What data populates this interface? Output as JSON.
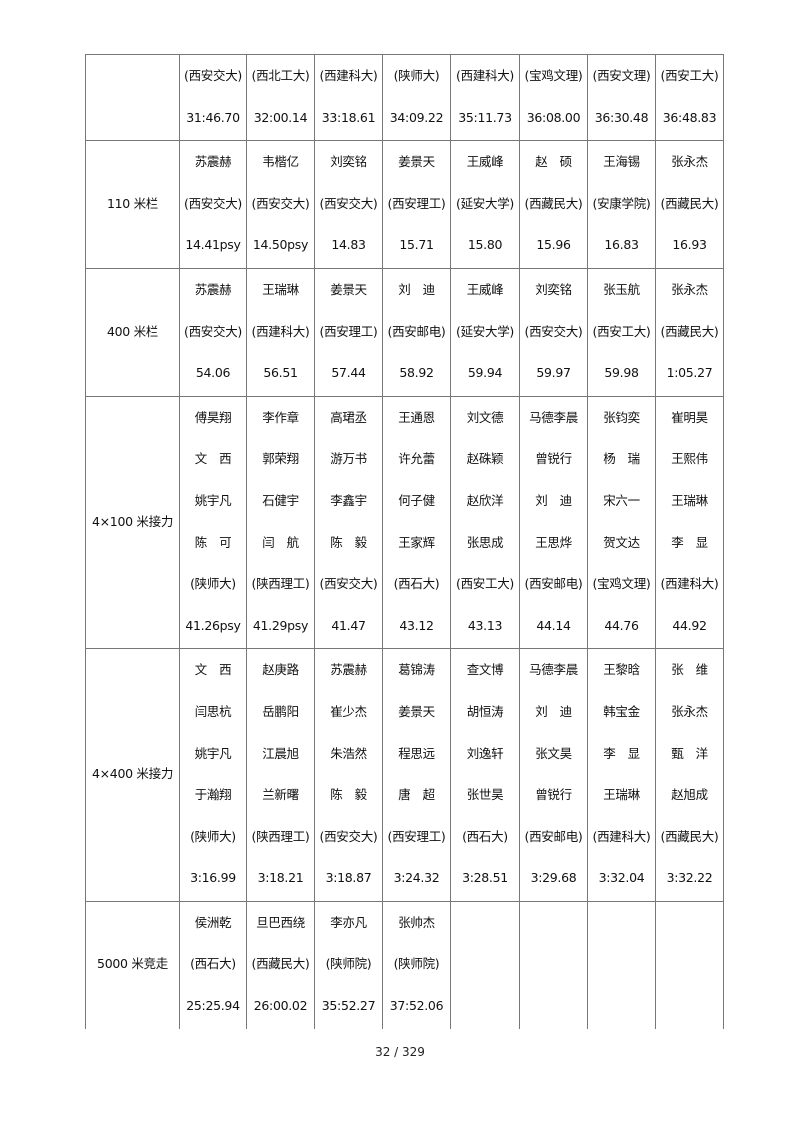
{
  "table": {
    "rows": [
      {
        "event": "",
        "cells": [
          [
            "(西安交大)",
            "31:46.70"
          ],
          [
            "(西北工大)",
            "32:00.14"
          ],
          [
            "(西建科大)",
            "33:18.61"
          ],
          [
            "(陕师大)",
            "34:09.22"
          ],
          [
            "(西建科大)",
            "35:11.73"
          ],
          [
            "(宝鸡文理)",
            "36:08.00"
          ],
          [
            "(西安文理)",
            "36:30.48"
          ],
          [
            "(西安工大)",
            "36:48.83"
          ]
        ]
      },
      {
        "event": "110 米栏",
        "cells": [
          [
            "苏震赫",
            "(西安交大)",
            "14.41psy"
          ],
          [
            "韦楷亿",
            "(西安交大)",
            "14.50psy"
          ],
          [
            "刘奕铭",
            "(西安交大)",
            "14.83"
          ],
          [
            "姜景天",
            "(西安理工)",
            "15.71"
          ],
          [
            "王威峰",
            "(延安大学)",
            "15.80"
          ],
          [
            "赵　硕",
            "(西藏民大)",
            "15.96"
          ],
          [
            "王海锡",
            "(安康学院)",
            "16.83"
          ],
          [
            "张永杰",
            "(西藏民大)",
            "16.93"
          ]
        ]
      },
      {
        "event": "400 米栏",
        "cells": [
          [
            "苏震赫",
            "(西安交大)",
            "54.06"
          ],
          [
            "王瑞琳",
            "(西建科大)",
            "56.51"
          ],
          [
            "姜景天",
            "(西安理工)",
            "57.44"
          ],
          [
            "刘　迪",
            "(西安邮电)",
            "58.92"
          ],
          [
            "王威峰",
            "(延安大学)",
            "59.94"
          ],
          [
            "刘奕铭",
            "(西安交大)",
            "59.97"
          ],
          [
            "张玉航",
            "(西安工大)",
            "59.98"
          ],
          [
            "张永杰",
            "(西藏民大)",
            "1:05.27"
          ]
        ]
      },
      {
        "event": "4×100 米接力",
        "cells": [
          [
            "傅昊翔",
            "文　西",
            "姚宇凡",
            "陈　可",
            "(陕师大)",
            "41.26psy"
          ],
          [
            "李作章",
            "郭荣翔",
            "石健宇",
            "闫　航",
            "(陕西理工)",
            "41.29psy"
          ],
          [
            "高珺丞",
            "游万书",
            "李鑫宇",
            "陈　毅",
            "(西安交大)",
            "41.47"
          ],
          [
            "王通恩",
            "许允蕾",
            "何子健",
            "王家辉",
            "(西石大)",
            "43.12"
          ],
          [
            "刘文德",
            "赵硃颖",
            "赵欣洋",
            "张思成",
            "(西安工大)",
            "43.13"
          ],
          [
            "马德李晨",
            "曾锐行",
            "刘　迪",
            "王思烨",
            "(西安邮电)",
            "44.14"
          ],
          [
            "张钧奕",
            "杨　瑞",
            "宋六一",
            "贺文达",
            "(宝鸡文理)",
            "44.76"
          ],
          [
            "崔明昊",
            "王熙伟",
            "王瑞琳",
            "李　显",
            "(西建科大)",
            "44.92"
          ]
        ]
      },
      {
        "event": "4×400 米接力",
        "cells": [
          [
            "文　西",
            "闫思杭",
            "姚宇凡",
            "于瀚翔",
            "(陕师大)",
            "3:16.99"
          ],
          [
            "赵庚路",
            "岳鹏阳",
            "江晨旭",
            "兰新曙",
            "(陕西理工)",
            "3:18.21"
          ],
          [
            "苏震赫",
            "崔少杰",
            "朱浩然",
            "陈　毅",
            "(西安交大)",
            "3:18.87"
          ],
          [
            "葛锦涛",
            "姜景天",
            "程思远",
            "唐　超",
            "(西安理工)",
            "3:24.32"
          ],
          [
            "查文博",
            "胡恒涛",
            "刘逸轩",
            "张世昊",
            "(西石大)",
            "3:28.51"
          ],
          [
            "马德李晨",
            "刘　迪",
            "张文昊",
            "曾锐行",
            "(西安邮电)",
            "3:29.68"
          ],
          [
            "王黎晗",
            "韩宝金",
            "李　显",
            "王瑞琳",
            "(西建科大)",
            "3:32.04"
          ],
          [
            "张　维",
            "张永杰",
            "甄　洋",
            "赵旭成",
            "(西藏民大)",
            "3:32.22"
          ]
        ]
      },
      {
        "event": "5000 米竞走",
        "cells": [
          [
            "侯洲乾",
            "(西石大)",
            "25:25.94"
          ],
          [
            "旦巴西绕",
            "(西藏民大)",
            "26:00.02"
          ],
          [
            "李亦凡",
            "(陕师院)",
            "35:52.27"
          ],
          [
            "张帅杰",
            "(陕师院)",
            "37:52.06"
          ],
          [],
          [],
          [],
          []
        ]
      }
    ]
  },
  "footer": {
    "page_number": "32 / 329"
  }
}
